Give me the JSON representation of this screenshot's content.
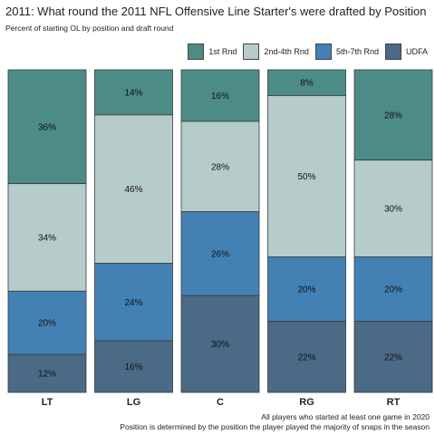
{
  "chart_data": {
    "type": "bar",
    "stacked": "percent",
    "title": "2011: What round the 2011 NFL Offensive Line Starter's were drafted by Position",
    "subtitle": "Percent of starting OL by position and draft round",
    "captions": [
      "All players who started at least one game in 2020",
      "Position is determined by the position the player played the majority of snaps in the season"
    ],
    "categories": [
      "LT",
      "LG",
      "C",
      "RG",
      "RT"
    ],
    "series": [
      {
        "name": "1st Rnd",
        "color": "#4d8c86",
        "values": [
          36,
          14,
          16,
          8,
          28
        ],
        "labels": [
          "36%",
          "14%",
          "16%",
          "8%",
          "28%"
        ]
      },
      {
        "name": "2nd-4th Rnd",
        "color": "#b6cccb",
        "values": [
          34,
          46,
          28,
          50,
          30
        ],
        "labels": [
          "34%",
          "46%",
          "28%",
          "50%",
          "30%"
        ]
      },
      {
        "name": "5th-7th Rnd",
        "color": "#4381b5",
        "values": [
          20,
          24,
          26,
          20,
          20
        ],
        "labels": [
          "20%",
          "24%",
          "26%",
          "20%",
          "20%"
        ]
      },
      {
        "name": "UDFA",
        "color": "#4a6a86",
        "values": [
          12,
          16,
          30,
          22,
          22
        ],
        "labels": [
          "12%",
          "16%",
          "30%",
          "22%",
          "22%"
        ]
      }
    ],
    "legend_position": "top-right",
    "grid": false
  }
}
